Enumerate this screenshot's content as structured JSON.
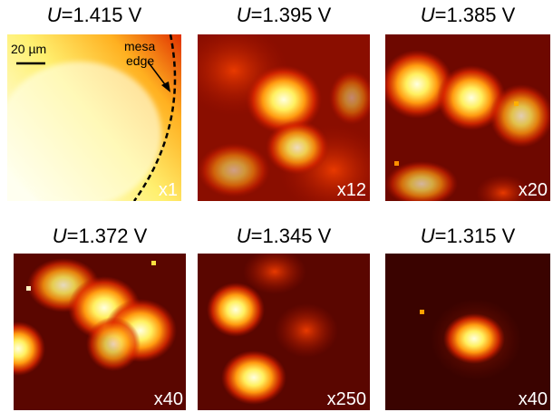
{
  "panels": [
    {
      "variable": "U",
      "value_text": "=1.415 V",
      "factor": "x1",
      "scale_bar": "20 µm",
      "annotation": [
        "mesa",
        "edge"
      ]
    },
    {
      "variable": "U",
      "value_text": "=1.395 V",
      "factor": "x12"
    },
    {
      "variable": "U",
      "value_text": "=1.385 V",
      "factor": "x20"
    },
    {
      "variable": "U",
      "value_text": "=1.372 V",
      "factor": "x40"
    },
    {
      "variable": "U",
      "value_text": "=1.345 V",
      "factor": "x250"
    },
    {
      "variable": "U",
      "value_text": "=1.315 V",
      "factor": "x40"
    }
  ]
}
